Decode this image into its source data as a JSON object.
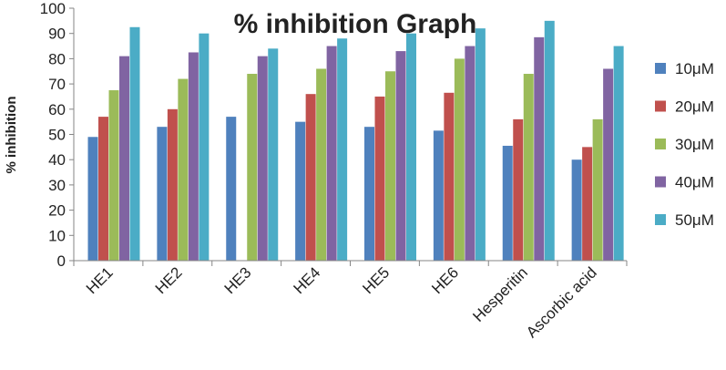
{
  "chart_data": {
    "type": "bar",
    "title": "% inhibition Graph",
    "xlabel": "",
    "ylabel": "% inhibition",
    "ylim": [
      0,
      100
    ],
    "yticks": [
      0,
      10,
      20,
      30,
      40,
      50,
      60,
      70,
      80,
      90,
      100
    ],
    "grid": false,
    "legend_position": "right",
    "categories": [
      "HE1",
      "HE2",
      "HE3",
      "HE4",
      "HE5",
      "HE6",
      "Hesperitin",
      "Ascorbic acid"
    ],
    "series": [
      {
        "name": "10μM",
        "color": "#4f81bd",
        "values": [
          49,
          53,
          57,
          55,
          53,
          51.5,
          45.5,
          40
        ]
      },
      {
        "name": "20μM",
        "color": "#c0504d",
        "values": [
          57,
          60,
          null,
          66,
          65,
          66.5,
          56,
          45
        ]
      },
      {
        "name": "30μM",
        "color": "#9bbb59",
        "values": [
          67.5,
          72,
          74,
          76,
          75,
          80,
          74,
          56
        ]
      },
      {
        "name": "40μM",
        "color": "#8064a2",
        "values": [
          81,
          82.5,
          81,
          85,
          83,
          85,
          88.5,
          76
        ]
      },
      {
        "name": "50μM",
        "color": "#4bacc6",
        "values": [
          92.5,
          90,
          84,
          88,
          90,
          92,
          95,
          85
        ]
      }
    ]
  }
}
